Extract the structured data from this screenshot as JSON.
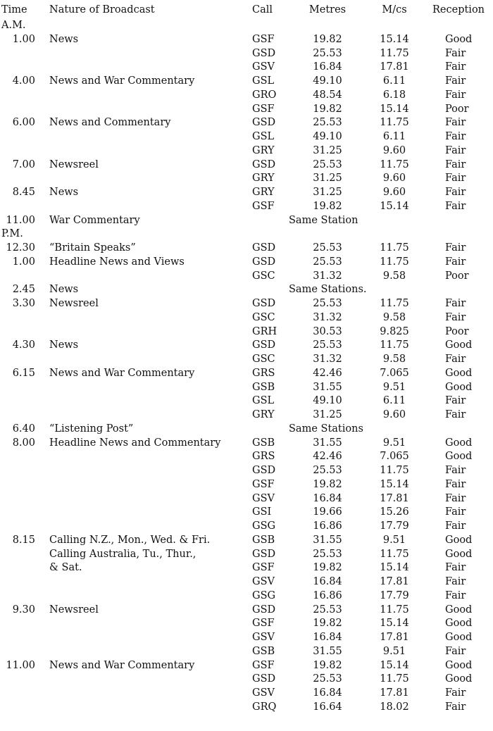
{
  "headers": {
    "time": "Time",
    "nature": "Nature of Broadcast",
    "call": "Call",
    "metres": "Metres",
    "mcs": "M/cs",
    "reception": "Reception"
  },
  "rows": [
    {
      "section": "A.M."
    },
    {
      "time": "1.00",
      "nature": "News",
      "call": "GSF",
      "metres": "19.82",
      "mcs": "15.14",
      "reception": "Good"
    },
    {
      "call": "GSD",
      "metres": "25.53",
      "mcs": "11.75",
      "reception": "Fair"
    },
    {
      "call": "GSV",
      "metres": "16.84",
      "mcs": "17.81",
      "reception": "Fair"
    },
    {
      "time": "4.00",
      "nature": "News and War Commentary",
      "call": "GSL",
      "metres": "49.10",
      "mcs": "6.11",
      "reception": "Fair"
    },
    {
      "call": "GRO",
      "metres": "48.54",
      "mcs": "6.18",
      "reception": "Fair"
    },
    {
      "call": "GSF",
      "metres": "19.82",
      "mcs": "15.14",
      "reception": "Poor"
    },
    {
      "time": "6.00",
      "nature": "News and Commentary",
      "call": "GSD",
      "metres": "25.53",
      "mcs": "11.75",
      "reception": "Fair"
    },
    {
      "call": "GSL",
      "metres": "49.10",
      "mcs": "6.11",
      "reception": "Fair"
    },
    {
      "call": "GRY",
      "metres": "31.25",
      "mcs": "9.60",
      "reception": "Fair"
    },
    {
      "time": "7.00",
      "nature": "Newsreel",
      "call": "GSD",
      "metres": "25.53",
      "mcs": "11.75",
      "reception": "Fair"
    },
    {
      "call": "GRY",
      "metres": "31.25",
      "mcs": "9.60",
      "reception": "Fair"
    },
    {
      "time": "8.45",
      "nature": "News",
      "call": "GRY",
      "metres": "31.25",
      "mcs": "9.60",
      "reception": "Fair"
    },
    {
      "call": "GSF",
      "metres": "19.82",
      "mcs": "15.14",
      "reception": "Fair"
    },
    {
      "time": "11.00",
      "nature": "War Commentary",
      "note": "Same Station"
    },
    {
      "section": "P.M."
    },
    {
      "time": "12.30",
      "nature": "“Britain Speaks”",
      "call": "GSD",
      "metres": "25.53",
      "mcs": "11.75",
      "reception": "Fair"
    },
    {
      "time": "1.00",
      "nature": "Headline News and Views",
      "call": "GSD",
      "metres": "25.53",
      "mcs": "11.75",
      "reception": "Fair"
    },
    {
      "call": "GSC",
      "metres": "31.32",
      "mcs": "9.58",
      "reception": "Poor"
    },
    {
      "time": "2.45",
      "nature": "News",
      "note": "Same Stations."
    },
    {
      "time": "3.30",
      "nature": "Newsreel",
      "call": "GSD",
      "metres": "25.53",
      "mcs": "11.75",
      "reception": "Fair"
    },
    {
      "call": "GSC",
      "metres": "31.32",
      "mcs": "9.58",
      "reception": "Fair"
    },
    {
      "call": "GRH",
      "metres": "30.53",
      "mcs": "9.825",
      "reception": "Poor"
    },
    {
      "time": "4.30",
      "nature": "News",
      "call": "GSD",
      "metres": "25.53",
      "mcs": "11.75",
      "reception": "Good"
    },
    {
      "call": "GSC",
      "metres": "31.32",
      "mcs": "9.58",
      "reception": "Fair"
    },
    {
      "time": "6.15",
      "nature": "News and War Commentary",
      "call": "GRS",
      "metres": "42.46",
      "mcs": "7.065",
      "reception": "Good"
    },
    {
      "call": "GSB",
      "metres": "31.55",
      "mcs": "9.51",
      "reception": "Good"
    },
    {
      "call": "GSL",
      "metres": "49.10",
      "mcs": "6.11",
      "reception": "Fair"
    },
    {
      "call": "GRY",
      "metres": "31.25",
      "mcs": "9.60",
      "reception": "Fair"
    },
    {
      "time": "6.40",
      "nature": "“Listening Post”",
      "note": "Same Stations"
    },
    {
      "time": "8.00",
      "nature": "Headline News and Commentary",
      "call": "GSB",
      "metres": "31.55",
      "mcs": "9.51",
      "reception": "Good"
    },
    {
      "call": "GRS",
      "metres": "42.46",
      "mcs": "7.065",
      "reception": "Good"
    },
    {
      "call": "GSD",
      "metres": "25.53",
      "mcs": "11.75",
      "reception": "Fair"
    },
    {
      "call": "GSF",
      "metres": "19.82",
      "mcs": "15.14",
      "reception": "Fair"
    },
    {
      "call": "GSV",
      "metres": "16.84",
      "mcs": "17.81",
      "reception": "Fair"
    },
    {
      "call": "GSI",
      "metres": "19.66",
      "mcs": "15.26",
      "reception": "Fair"
    },
    {
      "call": "GSG",
      "metres": "16.86",
      "mcs": "17.79",
      "reception": "Fair"
    },
    {
      "time": "8.15",
      "nature": "Calling N.Z., Mon., Wed. & Fri.",
      "call": "GSB",
      "metres": "31.55",
      "mcs": "9.51",
      "reception": "Good"
    },
    {
      "nature": "Calling Australia, Tu., Thur.,",
      "call": "GSD",
      "metres": "25.53",
      "mcs": "11.75",
      "reception": "Good"
    },
    {
      "nature": "& Sat.",
      "call": "GSF",
      "metres": "19.82",
      "mcs": "15.14",
      "reception": "Fair"
    },
    {
      "call": "GSV",
      "metres": "16.84",
      "mcs": "17.81",
      "reception": "Fair"
    },
    {
      "call": "GSG",
      "metres": "16.86",
      "mcs": "17.79",
      "reception": "Fair"
    },
    {
      "time": "9.30",
      "nature": "Newsreel",
      "call": "GSD",
      "metres": "25.53",
      "mcs": "11.75",
      "reception": "Good"
    },
    {
      "call": "GSF",
      "metres": "19.82",
      "mcs": "15.14",
      "reception": "Good"
    },
    {
      "call": "GSV",
      "metres": "16.84",
      "mcs": "17.81",
      "reception": "Good"
    },
    {
      "call": "GSB",
      "metres": "31.55",
      "mcs": "9.51",
      "reception": "Fair"
    },
    {
      "time": "11.00",
      "nature": "News and War Commentary",
      "call": "GSF",
      "metres": "19.82",
      "mcs": "15.14",
      "reception": "Good"
    },
    {
      "call": "GSD",
      "metres": "25.53",
      "mcs": "11.75",
      "reception": "Good"
    },
    {
      "call": "GSV",
      "metres": "16.84",
      "mcs": "17.81",
      "reception": "Fair"
    },
    {
      "call": "GRQ",
      "metres": "16.64",
      "mcs": "18.02",
      "reception": "Fair"
    }
  ]
}
